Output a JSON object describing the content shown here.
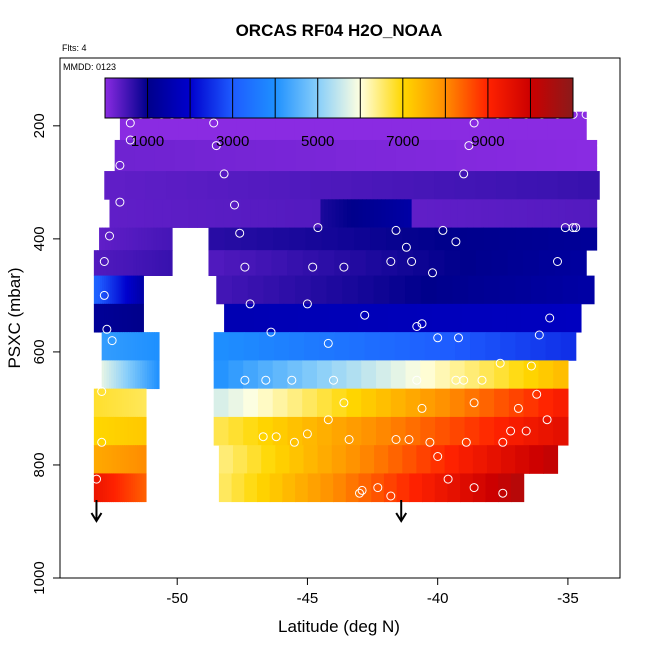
{
  "chart_data": {
    "type": "heatmap",
    "title": "ORCAS RF04 H2O_NOAA",
    "subtitle": "Flts: 4",
    "annotation": "MMDD: 0123",
    "xlabel": "Latitude (deg N)",
    "ylabel": "PSXC (mbar)",
    "xlim": [
      -54.5,
      -33
    ],
    "ylim": [
      1000,
      80
    ],
    "y_reversed": true,
    "x_ticks": [
      "-50",
      "-45",
      "-40",
      "-35"
    ],
    "y_ticks": [
      "200",
      "400",
      "600",
      "800",
      "1000"
    ],
    "colorbar": {
      "range": [
        0,
        11000
      ],
      "tick_labels": [
        "1000",
        "3000",
        "5000",
        "7000",
        "9000"
      ],
      "stops": [
        {
          "value": 0,
          "color": "#8a2be2"
        },
        {
          "value": 1000,
          "color": "#00008b"
        },
        {
          "value": 2000,
          "color": "#0000cd"
        },
        {
          "value": 3000,
          "color": "#1e5bff"
        },
        {
          "value": 4000,
          "color": "#1e90ff"
        },
        {
          "value": 5000,
          "color": "#87cefa"
        },
        {
          "value": 6000,
          "color": "#ffffe0"
        },
        {
          "value": 7000,
          "color": "#ffd700"
        },
        {
          "value": 8000,
          "color": "#ff8c00"
        },
        {
          "value": 9000,
          "color": "#ff2200"
        },
        {
          "value": 10000,
          "color": "#cc0000"
        },
        {
          "value": 11000,
          "color": "#8b1a1a"
        }
      ]
    },
    "rows": [
      {
        "p": [
          175,
          225
        ],
        "segments": [
          {
            "x": [
              -52.2,
              -34.3
            ],
            "values": [
              0,
              0
            ]
          }
        ]
      },
      {
        "p": [
          225,
          280
        ],
        "segments": [
          {
            "x": [
              -52.4,
              -33.9
            ],
            "values": [
              200,
              0
            ]
          }
        ]
      },
      {
        "p": [
          280,
          330
        ],
        "segments": [
          {
            "x": [
              -52.8,
              -33.8
            ],
            "values": [
              300,
              600
            ]
          }
        ]
      },
      {
        "p": [
          330,
          380
        ],
        "segments": [
          {
            "x": [
              -52.6,
              -44.5
            ],
            "values": [
              300,
              400
            ]
          },
          {
            "x": [
              -44.5,
              -41.0
            ],
            "values": [
              800,
              1400
            ]
          },
          {
            "x": [
              -41.0,
              -33.9
            ],
            "values": [
              300,
              400
            ]
          }
        ]
      },
      {
        "p": [
          380,
          420
        ],
        "segments": [
          {
            "x": [
              -53.0,
              -50.2
            ],
            "values": [
              300,
              500
            ]
          },
          {
            "x": [
              -48.8,
              -33.9
            ],
            "values": [
              700,
              1200
            ]
          }
        ]
      },
      {
        "p": [
          420,
          465
        ],
        "segments": [
          {
            "x": [
              -53.2,
              -50.2
            ],
            "values": [
              400,
              600
            ]
          },
          {
            "x": [
              -48.8,
              -34.3
            ],
            "values": [
              400,
              1300
            ]
          }
        ]
      },
      {
        "p": [
          465,
          515
        ],
        "segments": [
          {
            "x": [
              -53.2,
              -51.3
            ],
            "values": [
              3200,
              1400
            ]
          },
          {
            "x": [
              -48.5,
              -34.0
            ],
            "values": [
              500,
              1400
            ]
          }
        ]
      },
      {
        "p": [
          515,
          565
        ],
        "segments": [
          {
            "x": [
              -53.2,
              -51.3
            ],
            "values": [
              1200,
              1000
            ]
          },
          {
            "x": [
              -48.2,
              -34.5
            ],
            "values": [
              1600,
              1800
            ]
          }
        ]
      },
      {
        "p": [
          565,
          615
        ],
        "segments": [
          {
            "x": [
              -52.9,
              -50.7
            ],
            "values": [
              4200,
              4000
            ]
          },
          {
            "x": [
              -48.6,
              -34.7
            ],
            "values": [
              4000,
              2500
            ]
          }
        ]
      },
      {
        "p": [
          615,
          665
        ],
        "segments": [
          {
            "x": [
              -52.9,
              -50.7
            ],
            "values": [
              5800,
              4000
            ]
          },
          {
            "x": [
              -48.6,
              -35.0
            ],
            "values": [
              4000,
              7400
            ]
          }
        ]
      },
      {
        "p": [
          665,
          715
        ],
        "segments": [
          {
            "x": [
              -53.2,
              -51.2
            ],
            "values": [
              6800,
              6600
            ]
          },
          {
            "x": [
              -48.6,
              -35.0
            ],
            "values": [
              5600,
              9200
            ]
          }
        ]
      },
      {
        "p": [
          715,
          765
        ],
        "segments": [
          {
            "x": [
              -53.2,
              -51.2
            ],
            "values": [
              7000,
              7200
            ]
          },
          {
            "x": [
              -48.6,
              -35.0
            ],
            "values": [
              6600,
              9600
            ]
          }
        ]
      },
      {
        "p": [
          765,
          815
        ],
        "segments": [
          {
            "x": [
              -53.2,
              -51.2
            ],
            "values": [
              7600,
              8000
            ]
          },
          {
            "x": [
              -48.4,
              -35.4
            ],
            "values": [
              6400,
              10200
            ]
          }
        ]
      },
      {
        "p": [
          815,
          865
        ],
        "segments": [
          {
            "x": [
              -53.2,
              -51.2
            ],
            "values": [
              9400,
              8400
            ]
          },
          {
            "x": [
              -48.4,
              -36.7
            ],
            "values": [
              6500,
              10400
            ]
          }
        ]
      }
    ],
    "flight_track": [
      [
        -51.8,
        180
      ],
      [
        -51.4,
        180
      ],
      [
        -51.0,
        180
      ],
      [
        -50.6,
        180
      ],
      [
        -50.2,
        180
      ],
      [
        -49.8,
        180
      ],
      [
        -49.4,
        180
      ],
      [
        -49.0,
        180
      ],
      [
        -48.6,
        195
      ],
      [
        -48.5,
        235
      ],
      [
        -48.2,
        285
      ],
      [
        -47.8,
        340
      ],
      [
        -47.6,
        390
      ],
      [
        -47.4,
        450
      ],
      [
        -47.2,
        515
      ],
      [
        -46.4,
        565
      ],
      [
        -46.6,
        650
      ],
      [
        -46.7,
        750
      ],
      [
        -45.6,
        650
      ],
      [
        -45.0,
        515
      ],
      [
        -44.8,
        450
      ],
      [
        -44.6,
        380
      ],
      [
        -43.6,
        450
      ],
      [
        -42.8,
        535
      ],
      [
        -44.2,
        585
      ],
      [
        -44.0,
        650
      ],
      [
        -43.6,
        690
      ],
      [
        -43.4,
        755
      ],
      [
        -42.9,
        845
      ],
      [
        -42.3,
        840
      ],
      [
        -41.8,
        440
      ],
      [
        -41.6,
        385
      ],
      [
        -41.2,
        415
      ],
      [
        -41.0,
        440
      ],
      [
        -40.6,
        550
      ],
      [
        -40.8,
        555
      ],
      [
        -40.2,
        460
      ],
      [
        -39.8,
        385
      ],
      [
        -39.3,
        405
      ],
      [
        -39.0,
        285
      ],
      [
        -38.8,
        235
      ],
      [
        -38.6,
        195
      ],
      [
        -38.3,
        180
      ],
      [
        -37.7,
        180
      ],
      [
        -37.2,
        180
      ],
      [
        -36.6,
        180
      ],
      [
        -36.0,
        180
      ],
      [
        -35.4,
        180
      ],
      [
        -34.8,
        180
      ],
      [
        -34.3,
        180
      ],
      [
        -33.7,
        235
      ],
      [
        -33.7,
        270
      ],
      [
        -34.7,
        380
      ],
      [
        -35.1,
        380
      ],
      [
        -34.8,
        380
      ],
      [
        -35.4,
        440
      ],
      [
        -35.7,
        540
      ],
      [
        -36.1,
        570
      ],
      [
        -36.4,
        625
      ],
      [
        -36.2,
        675
      ],
      [
        -35.8,
        720
      ],
      [
        -36.6,
        740
      ],
      [
        -37.2,
        740
      ],
      [
        -37.5,
        850
      ],
      [
        -38.6,
        840
      ],
      [
        -39.6,
        825
      ],
      [
        -40.0,
        785
      ],
      [
        -40.3,
        760
      ],
      [
        -40.6,
        700
      ],
      [
        -40.8,
        650
      ],
      [
        -39.3,
        650
      ],
      [
        -39.0,
        650
      ],
      [
        -38.3,
        650
      ],
      [
        -37.6,
        620
      ],
      [
        -37.5,
        760
      ],
      [
        -36.9,
        700
      ],
      [
        -38.6,
        690
      ],
      [
        -38.9,
        760
      ],
      [
        -39.2,
        575
      ],
      [
        -40.0,
        575
      ],
      [
        -41.1,
        755
      ],
      [
        -41.6,
        755
      ],
      [
        -41.8,
        855
      ],
      [
        -43.0,
        850
      ],
      [
        -45.0,
        745
      ],
      [
        -45.5,
        760
      ],
      [
        -46.2,
        750
      ],
      [
        -47.4,
        650
      ],
      [
        -44.2,
        720
      ],
      [
        -52.5,
        580
      ],
      [
        -52.7,
        560
      ],
      [
        -52.8,
        500
      ],
      [
        -52.8,
        440
      ],
      [
        -52.6,
        395
      ],
      [
        -52.2,
        335
      ],
      [
        -52.2,
        270
      ],
      [
        -51.8,
        225
      ],
      [
        -51.8,
        195
      ],
      [
        -52.9,
        760
      ],
      [
        -52.9,
        670
      ],
      [
        -53.1,
        825
      ]
    ],
    "arrows": [
      -53.1,
      -41.4
    ]
  }
}
